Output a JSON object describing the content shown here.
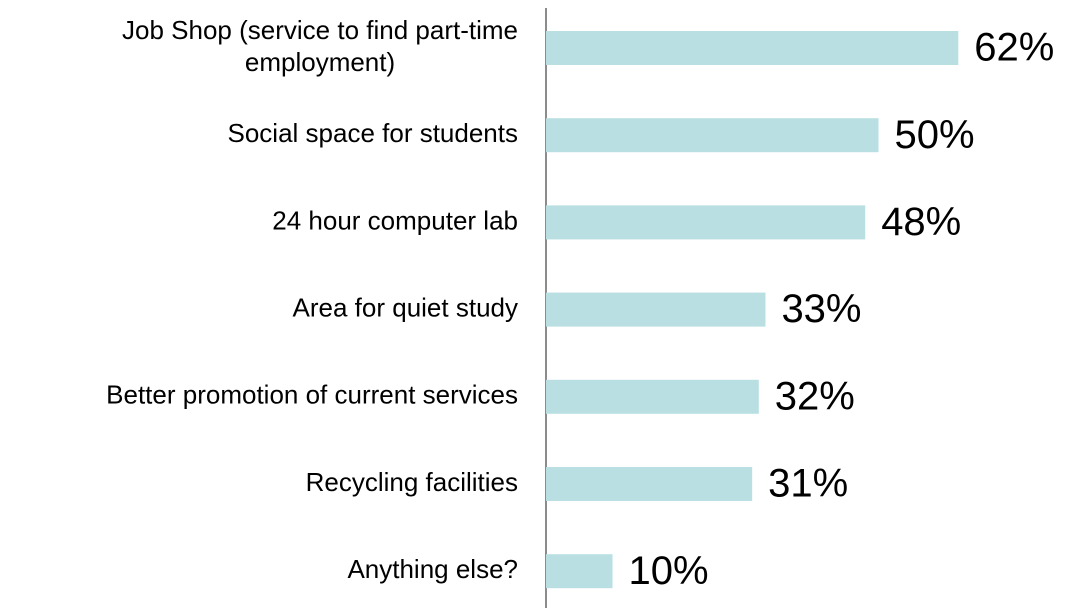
{
  "chart_data": {
    "type": "bar",
    "orientation": "horizontal",
    "categories": [
      [
        "Job Shop (service to find part-time",
        "employment)"
      ],
      "Social space for students",
      "24 hour computer lab",
      "Area for quiet study",
      "Better promotion of current services",
      "Recycling facilities",
      "Anything else?"
    ],
    "values": [
      62,
      50,
      48,
      33,
      32,
      31,
      10
    ],
    "value_labels": [
      "62%",
      "50%",
      "48%",
      "33%",
      "32%",
      "31%",
      "10%"
    ],
    "color": "#b9dfe2",
    "xlim": [
      0,
      100
    ]
  }
}
